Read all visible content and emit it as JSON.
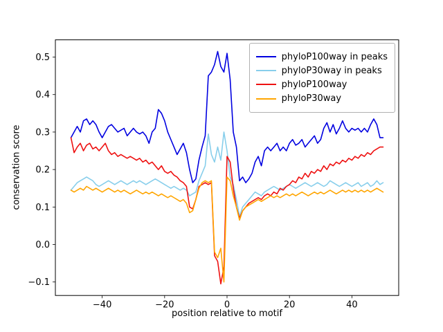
{
  "chart_data": {
    "type": "line",
    "title": "",
    "xlabel": "position relative to motif",
    "ylabel": "conservation score",
    "xlim": [
      -55,
      55
    ],
    "ylim": [
      -0.136,
      0.546
    ],
    "grid": false,
    "legend_position": "upper right",
    "xticks": {
      "values": [
        -40,
        -20,
        0,
        20,
        40
      ],
      "labels": [
        "−40",
        "−20",
        "0",
        "20",
        "40"
      ]
    },
    "yticks": {
      "values": [
        -0.1,
        0.0,
        0.1,
        0.2,
        0.3,
        0.4,
        0.5
      ],
      "labels": [
        "−0.1",
        "0.0",
        "0.1",
        "0.2",
        "0.3",
        "0.4",
        "0.5"
      ]
    },
    "x_start": -50,
    "x_step": 1,
    "series": [
      {
        "name": "phyloP100way in peaks",
        "color": "#0000e0",
        "values": [
          0.285,
          0.3,
          0.315,
          0.3,
          0.33,
          0.335,
          0.32,
          0.33,
          0.32,
          0.3,
          0.285,
          0.3,
          0.315,
          0.32,
          0.31,
          0.3,
          0.305,
          0.31,
          0.29,
          0.3,
          0.31,
          0.3,
          0.295,
          0.3,
          0.29,
          0.27,
          0.3,
          0.31,
          0.36,
          0.35,
          0.33,
          0.3,
          0.28,
          0.26,
          0.24,
          0.255,
          0.27,
          0.245,
          0.2,
          0.165,
          0.175,
          0.225,
          0.26,
          0.29,
          0.45,
          0.46,
          0.48,
          0.515,
          0.475,
          0.46,
          0.51,
          0.44,
          0.3,
          0.26,
          0.17,
          0.18,
          0.165,
          0.175,
          0.19,
          0.22,
          0.235,
          0.21,
          0.25,
          0.26,
          0.25,
          0.26,
          0.27,
          0.25,
          0.26,
          0.25,
          0.27,
          0.28,
          0.265,
          0.27,
          0.28,
          0.26,
          0.27,
          0.28,
          0.29,
          0.27,
          0.28,
          0.31,
          0.325,
          0.3,
          0.32,
          0.295,
          0.31,
          0.33,
          0.31,
          0.3,
          0.31,
          0.305,
          0.31,
          0.3,
          0.31,
          0.3,
          0.32,
          0.335,
          0.32,
          0.285,
          0.285
        ]
      },
      {
        "name": "phyloP30way in peaks",
        "color": "#87ceeb",
        "values": [
          0.145,
          0.155,
          0.165,
          0.17,
          0.175,
          0.18,
          0.175,
          0.17,
          0.16,
          0.155,
          0.16,
          0.165,
          0.17,
          0.165,
          0.16,
          0.165,
          0.17,
          0.165,
          0.16,
          0.165,
          0.17,
          0.165,
          0.17,
          0.165,
          0.16,
          0.165,
          0.17,
          0.175,
          0.17,
          0.165,
          0.16,
          0.155,
          0.15,
          0.155,
          0.15,
          0.145,
          0.15,
          0.145,
          0.13,
          0.135,
          0.14,
          0.17,
          0.19,
          0.21,
          0.295,
          0.24,
          0.22,
          0.26,
          0.225,
          0.3,
          0.25,
          0.18,
          0.16,
          0.12,
          0.075,
          0.1,
          0.11,
          0.12,
          0.13,
          0.14,
          0.135,
          0.13,
          0.14,
          0.145,
          0.15,
          0.155,
          0.15,
          0.145,
          0.15,
          0.155,
          0.16,
          0.155,
          0.15,
          0.155,
          0.16,
          0.165,
          0.16,
          0.155,
          0.16,
          0.165,
          0.16,
          0.155,
          0.16,
          0.17,
          0.165,
          0.16,
          0.155,
          0.16,
          0.165,
          0.16,
          0.155,
          0.16,
          0.165,
          0.155,
          0.16,
          0.165,
          0.155,
          0.16,
          0.17,
          0.16,
          0.165
        ]
      },
      {
        "name": "phyloP100way",
        "color": "#ee1111",
        "values": [
          0.285,
          0.245,
          0.26,
          0.27,
          0.25,
          0.265,
          0.27,
          0.255,
          0.26,
          0.25,
          0.26,
          0.27,
          0.25,
          0.24,
          0.245,
          0.235,
          0.24,
          0.235,
          0.23,
          0.235,
          0.23,
          0.225,
          0.23,
          0.22,
          0.225,
          0.215,
          0.22,
          0.21,
          0.2,
          0.21,
          0.195,
          0.19,
          0.195,
          0.185,
          0.18,
          0.17,
          0.165,
          0.155,
          0.1,
          0.095,
          0.12,
          0.155,
          0.16,
          0.165,
          0.16,
          0.165,
          -0.03,
          -0.045,
          -0.105,
          -0.06,
          0.235,
          0.22,
          0.15,
          0.1,
          0.07,
          0.09,
          0.1,
          0.11,
          0.115,
          0.12,
          0.125,
          0.12,
          0.13,
          0.135,
          0.13,
          0.14,
          0.135,
          0.15,
          0.145,
          0.155,
          0.16,
          0.17,
          0.165,
          0.18,
          0.175,
          0.19,
          0.18,
          0.195,
          0.19,
          0.2,
          0.195,
          0.21,
          0.2,
          0.215,
          0.21,
          0.22,
          0.215,
          0.225,
          0.22,
          0.23,
          0.225,
          0.235,
          0.23,
          0.24,
          0.235,
          0.245,
          0.24,
          0.25,
          0.255,
          0.26,
          0.26
        ]
      },
      {
        "name": "phyloP30way",
        "color": "#ffa500",
        "values": [
          0.145,
          0.14,
          0.145,
          0.15,
          0.145,
          0.155,
          0.15,
          0.145,
          0.15,
          0.145,
          0.14,
          0.145,
          0.15,
          0.145,
          0.14,
          0.145,
          0.14,
          0.145,
          0.14,
          0.135,
          0.14,
          0.145,
          0.14,
          0.135,
          0.14,
          0.135,
          0.14,
          0.135,
          0.13,
          0.135,
          0.13,
          0.125,
          0.13,
          0.125,
          0.12,
          0.115,
          0.12,
          0.11,
          0.085,
          0.09,
          0.12,
          0.15,
          0.165,
          0.17,
          0.165,
          0.17,
          -0.02,
          -0.035,
          -0.01,
          -0.1,
          0.18,
          0.17,
          0.13,
          0.1,
          0.065,
          0.09,
          0.1,
          0.105,
          0.11,
          0.115,
          0.12,
          0.115,
          0.12,
          0.125,
          0.13,
          0.125,
          0.13,
          0.125,
          0.13,
          0.135,
          0.13,
          0.135,
          0.13,
          0.135,
          0.14,
          0.135,
          0.13,
          0.135,
          0.14,
          0.135,
          0.14,
          0.135,
          0.14,
          0.145,
          0.14,
          0.135,
          0.14,
          0.145,
          0.14,
          0.145,
          0.14,
          0.145,
          0.14,
          0.145,
          0.14,
          0.145,
          0.14,
          0.145,
          0.15,
          0.145,
          0.14
        ]
      }
    ]
  }
}
